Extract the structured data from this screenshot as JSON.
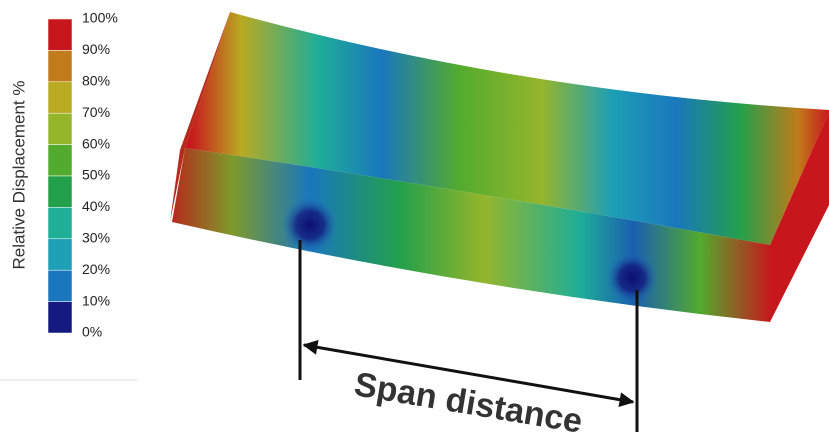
{
  "legend": {
    "title": "Relative Displacement %",
    "labels": [
      "100%",
      "90%",
      "80%",
      "70%",
      "60%",
      "50%",
      "40%",
      "30%",
      "20%",
      "10%",
      "0%"
    ],
    "colors": [
      "#c8161d",
      "#c07b1a",
      "#b9aa22",
      "#95b52b",
      "#52ab2e",
      "#23a04b",
      "#1fae98",
      "#1d9fb5",
      "#1a77bd",
      "#141a80"
    ]
  },
  "annotation": "Span distance"
}
